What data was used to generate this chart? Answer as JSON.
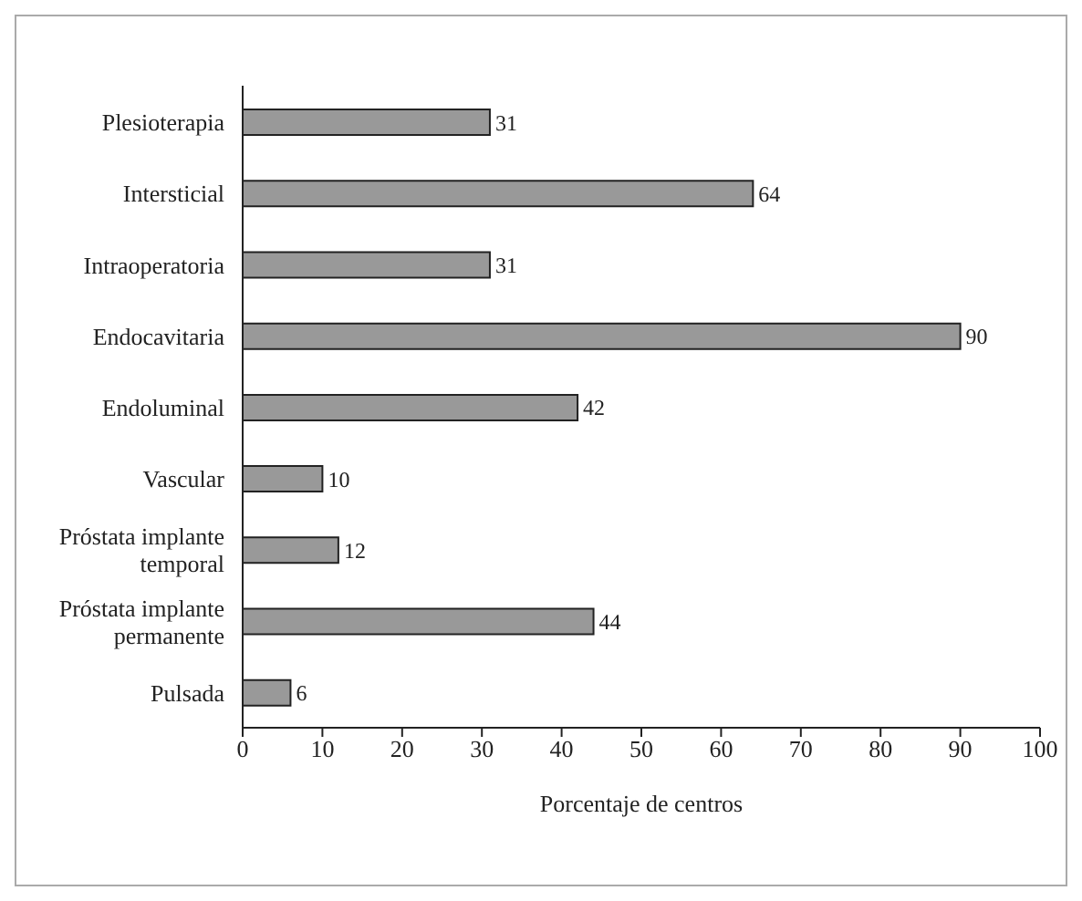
{
  "chart_data": {
    "type": "bar",
    "orientation": "horizontal",
    "categories": [
      "Plesioterapia",
      "Intersticial",
      "Intraoperatoria",
      "Endocavitaria",
      "Endoluminal",
      "Vascular",
      "Próstata implante temporal",
      "Próstata implante permanente",
      "Pulsada"
    ],
    "values": [
      31,
      64,
      31,
      90,
      42,
      10,
      12,
      44,
      6
    ],
    "color": "#999999",
    "data_labels": true,
    "xlabel": "Porcentaje de centros",
    "xlim": [
      0,
      100
    ],
    "xticks": [
      0,
      10,
      20,
      30,
      40,
      50,
      60,
      70,
      80,
      90,
      100
    ],
    "grid": false,
    "legend": false
  }
}
